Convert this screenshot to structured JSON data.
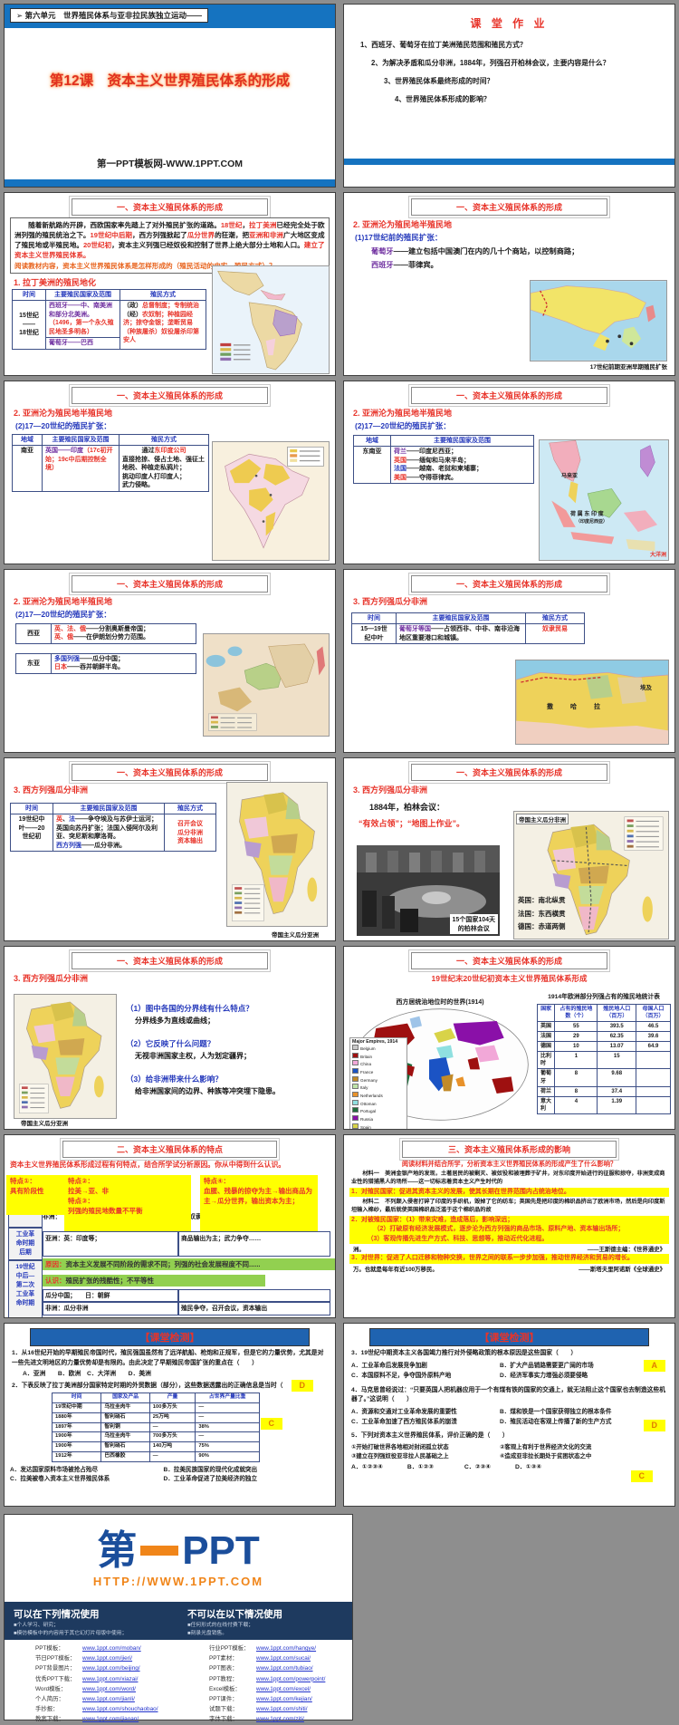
{
  "common": {
    "section1": "一、资本主义殖民体系的形成",
    "section2": "二、资本主义殖民体系的特点",
    "section3": "三、资本主义殖民体系形成的影响",
    "quiz_banner": "【课堂检测】"
  },
  "slide01": {
    "unit_header": "➢ 第六单元　世界殖民体系与亚非拉民族独立运动——",
    "title": "第12课　资本主义世界殖民体系的形成",
    "site": "第一PPT模板网-WWW.1PPT.COM"
  },
  "slide02": {
    "title": "课 堂 作 业",
    "questions": [
      "1、西班牙、葡萄牙在拉丁美洲殖民范围和殖民方式？",
      "2、为解决矛盾和瓜分非洲，1884年，列强召开柏林会议，主要内容是什么？",
      "3、世界殖民体系最终形成的时间？",
      "4、世界殖民体系形成的影响？"
    ]
  },
  "slide03": {
    "intro_seg": [
      {
        "t": "　　随着新航路的开辟，西欧国家率先踏上了对外殖民扩张的道路。",
        "c": "k"
      },
      {
        "t": "18世纪",
        "c": "r"
      },
      {
        "t": "，",
        "c": "k"
      },
      {
        "t": "拉丁美洲",
        "c": "r"
      },
      {
        "t": "已经完全处于欧洲列强的殖民统治之下。",
        "c": "k"
      },
      {
        "t": "19世纪中后期",
        "c": "r"
      },
      {
        "t": "，西方列强掀起了",
        "c": "k"
      },
      {
        "t": "瓜分世界",
        "c": "r"
      },
      {
        "t": "的狂潮，把",
        "c": "k"
      },
      {
        "t": "亚洲和非洲",
        "c": "r"
      },
      {
        "t": "广大地区变成了殖民地或半殖民地。",
        "c": "k"
      },
      {
        "t": "20世纪初",
        "c": "r"
      },
      {
        "t": "，资本主义列强已经奴役和控制了世界上绝大部分土地和人口。",
        "c": "k"
      },
      {
        "t": "建立了资本主义世界殖民体系。",
        "c": "r"
      }
    ],
    "prompt": "阅读教材内容，资本主义世界殖民体系是怎样形成的（殖民活动的史实，殖民方式）？",
    "sub": "1. 拉丁美洲的殖民地化",
    "headers": [
      "时间",
      "主要殖民国家及范围",
      "殖民方式"
    ],
    "time": "15世纪\n——\n18世纪",
    "row1_seg": [
      {
        "t": "西班牙——中、南美洲和部分北美洲。",
        "c": "p"
      },
      {
        "t": "（1496，第一个永久殖民地圣多明各）",
        "c": "r"
      }
    ],
    "row2_seg": [
      {
        "t": "葡萄牙——巴西",
        "c": "p"
      }
    ],
    "method_seg": [
      {
        "t": "（政）",
        "c": "k"
      },
      {
        "t": "总督制度；专制统治\n",
        "c": "r"
      },
      {
        "t": "（经）",
        "c": "k"
      },
      {
        "t": "农奴制；种植园经济；掠夺金银；垄断贸易\n",
        "c": "r"
      },
      {
        "t": "（种族屠杀）",
        "c": "r"
      },
      {
        "t": "奴役屠杀印第安人",
        "c": "r"
      }
    ]
  },
  "slide04": {
    "sub": "2. 亚洲沦为殖民地半殖民地",
    "point": "(1)17世纪前的殖民扩张：",
    "line1_seg": [
      {
        "t": "葡萄牙",
        "c": "p"
      },
      {
        "t": "——建立包括中国澳门在内的几十个商站，以控制商路；",
        "c": "k"
      }
    ],
    "line2_seg": [
      {
        "t": "西班牙",
        "c": "p"
      },
      {
        "t": "——菲律宾。",
        "c": "k"
      }
    ],
    "caption": "17世纪前期亚洲早期殖民扩张"
  },
  "slide05": {
    "sub": "2. 亚洲沦为殖民地半殖民地",
    "point": "(2)17—20世纪的殖民扩张：",
    "headers": [
      "地域",
      "主要殖民国家及范围",
      "殖民方式"
    ],
    "region": "南亚",
    "country_seg": [
      {
        "t": "英国——印度",
        "c": "p"
      },
      {
        "t": "（17c初开始；19c中后期控制全境）",
        "c": "r"
      }
    ],
    "method1_seg": [
      {
        "t": "通过",
        "c": "k"
      },
      {
        "t": "东印度公司",
        "c": "r"
      }
    ],
    "method2": "直接抢掠、侵占土地、强征土地税、种植走私鸦片；\n挑动印度人打印度人；\n武力侵略。"
  },
  "slide06": {
    "sub": "2. 亚洲沦为殖民地半殖民地",
    "point": "(2)17—20世纪的殖民扩张：",
    "headers": [
      "地域",
      "主要殖民国家及范围"
    ],
    "region": "东南亚",
    "lines_seg": [
      {
        "t": "荷兰",
        "c": "p"
      },
      {
        "t": "——印度尼西亚；\n",
        "c": "k"
      },
      {
        "t": "英国",
        "c": "r"
      },
      {
        "t": "——缅甸和马来半岛；\n",
        "c": "k"
      },
      {
        "t": "法国",
        "c": "b"
      },
      {
        "t": "——越南、老挝和柬埔寨；\n",
        "c": "k"
      },
      {
        "t": "美国",
        "c": "r"
      },
      {
        "t": "——夺得菲律宾。",
        "c": "k"
      }
    ],
    "map_labels": {
      "malaya": "马来亚",
      "dutch": "荷 属 东 印 度",
      "dutch2": "（印度尼西亚）",
      "oceania": "大洋洲"
    }
  },
  "slide07": {
    "sub": "2. 亚洲沦为殖民地半殖民地",
    "point": "(2)17—20世纪的殖民扩张：",
    "west_region": "西亚",
    "west_seg": [
      {
        "t": "英、法、俄",
        "c": "r"
      },
      {
        "t": "——分割奥斯曼帝国；\n",
        "c": "k"
      },
      {
        "t": "英、俄",
        "c": "r"
      },
      {
        "t": "——在伊朗划分势力范围。",
        "c": "k"
      }
    ],
    "east_region": "东亚",
    "east_seg": [
      {
        "t": "多国列强",
        "c": "b"
      },
      {
        "t": "——瓜分中国；\n",
        "c": "k"
      },
      {
        "t": "日本",
        "c": "r"
      },
      {
        "t": "——吞并朝鲜半岛。",
        "c": "k"
      }
    ]
  },
  "slide08": {
    "sub": "3. 西方列强瓜分非洲",
    "headers": [
      "时间",
      "主要殖民国家及范围",
      "殖民方式"
    ],
    "time": "15—19世\n纪中叶",
    "range_seg": [
      {
        "t": "葡萄牙等国",
        "c": "p"
      },
      {
        "t": "——占领西非、中非、南非沿海地区重要港口和城镇。",
        "c": "k"
      }
    ],
    "method": "奴隶贸易",
    "map_labels": {
      "sahara": "撒　哈　拉",
      "egypt": "埃及"
    }
  },
  "slide09": {
    "sub": "3. 西方列强瓜分非洲",
    "headers": [
      "时间",
      "主要殖民国家及范围",
      "殖民方式"
    ],
    "time": "19世纪中\n叶——20\n世纪初",
    "range_seg": [
      {
        "t": "英",
        "c": "r"
      },
      {
        "t": "、",
        "c": "k"
      },
      {
        "t": "法",
        "c": "b"
      },
      {
        "t": "——争夺埃及与苏伊士运河；英国向苏丹扩张；法国入侵阿尔及利亚、突尼斯和摩洛哥。\n",
        "c": "k"
      },
      {
        "t": "西方列强",
        "c": "b"
      },
      {
        "t": "——瓜分非洲。",
        "c": "k"
      }
    ],
    "methods": "召开会议\n瓜分非洲\n资本输出",
    "caption": "帝国主义瓜分亚洲"
  },
  "slide10": {
    "sub": "3. 西方列强瓜分非洲",
    "line1": "1884年，柏林会议：",
    "line2": "“有效占领”；“地图上作业”。",
    "photo_caption": "15个国家104天\n的柏林会议",
    "map_box": "帝国主义瓜分非洲",
    "map_notes": "英国：南北纵贯\n法国：东西横贯\n德国：赤道两侧"
  },
  "slide11": {
    "sub": "3. 西方列强瓜分非洲",
    "qa": [
      {
        "q": "（1）图中各国的分界线有什么特点？",
        "a": "分界线多为直线或曲线；"
      },
      {
        "q": "（2）它反映了什么问题？",
        "a": "无视非洲国家主权，人为划定疆界；"
      },
      {
        "q": "（3）给非洲带来什么影响？",
        "a": "给非洲国家间的边界、种族等冲突埋下隐患。"
      }
    ],
    "caption": "帝国主义瓜分亚洲"
  },
  "slide12": {
    "title": "19世纪末20世纪初资本主义世界殖民体系形成",
    "map_title": "西方居统治地位时的世界(1914)",
    "legend_title": "Major Empires, 1914",
    "legend": [
      {
        "name": "Belgium",
        "color": "#c8c8c8"
      },
      {
        "name": "Britain",
        "color": "#9e1010"
      },
      {
        "name": "China",
        "color": "#f2a8d8"
      },
      {
        "name": "France",
        "color": "#1b53c4"
      },
      {
        "name": "Germany",
        "color": "#c28a28"
      },
      {
        "name": "Italy",
        "color": "#bfe3a8"
      },
      {
        "name": "Netherlands",
        "color": "#e8922a"
      },
      {
        "name": "Ottoman",
        "color": "#8fe0e0"
      },
      {
        "name": "Portugal",
        "color": "#1f6e3c"
      },
      {
        "name": "Russia",
        "color": "#8a10a8"
      },
      {
        "name": "Spain",
        "color": "#d8d348"
      },
      {
        "name": "United States",
        "color": "#f2f2f2"
      }
    ],
    "chart_data": {
      "type": "table",
      "title": "1914年欧洲部分列强占有的殖民地统计表",
      "headers": [
        "国家",
        "占有的殖民地数（个）",
        "殖民地人口（百万）",
        "母国人口（百万）"
      ],
      "rows": [
        [
          "英国",
          "55",
          "393.5",
          "46.5"
        ],
        [
          "法国",
          "29",
          "62.35",
          "39.6"
        ],
        [
          "德国",
          "10",
          "13.07",
          "64.9"
        ],
        [
          "比利时",
          "1",
          "15",
          ""
        ],
        [
          "葡萄牙",
          "8",
          "9.68",
          ""
        ],
        [
          "荷兰",
          "8",
          "37.4",
          ""
        ],
        [
          "意大利",
          "4",
          "1.39",
          ""
        ]
      ]
    }
  },
  "slide13": {
    "prompt": "资本主义世界殖民体系形成过程有何特点，结合所学试分析原因。你从中得到什么认识。",
    "note1": "特点①：\n具有阶段性",
    "note2": "特点②：\n拉美→亚、非\n特点③：\n列强的殖民地数量不平衡",
    "note4": "特点④：\n血腥、残暴的掠夺为主→输出商品为主→瓜分世界，输出资本为主；",
    "rowhead1": "前工业\n革命时\n期",
    "rowhead2": "工业革\n命时期\n后期",
    "rowhead3": "19世纪\n中后—\n第二次\n工业革\n命时期",
    "r1_c1": "非洲：",
    "r1_c2": "奴隶贸易",
    "r2_c1": "亚洲：英：印度等；",
    "r2_c2": "商品输出为主；武力争夺……",
    "cause_lbl": "原因：",
    "cause": "资本主义发展不同阶段的需求不同；列强的社会发展程度不同......",
    "insight_lbl": "认识：",
    "insight": "殖民扩张的残酷性；不平等性",
    "r3_c1a": "瓜分中国；　　日：朝鲜",
    "r3_c1b": "非洲：瓜分非洲",
    "r3_c2b": "殖民争夺，召开会议，资本输出"
  },
  "slide14": {
    "prompt": "阅读材料并结合所学，分析资本主义世界殖民体系的形成产生了什么影响？",
    "m1": "　　材料一　美洲金银产地的发现，土著居民的被剿灭、被奴役和被埋葬于矿井，对东印度开始进行的征服和掠夺，非洲变成商业性的猎捕黑人的场所——这一切标志着资本主义产生时代的",
    "y1": "1．对殖民国家：促进其资本主义的发展，使其长期在世界范围内占统治地位。",
    "m2": "　　材料二　不列颠入侵者打碎了印度的手织机，毁掉了它的纺车；英国先是把印度的棉织品挤出了欧洲市场，然后是向印度斯坦输入棉纱，最后就使英国棉织品泛滥于这个棉织品的故",
    "y2": "2．对被殖民国家：（1）带来灾难，造成落后，影响深远；\n　　　　（2）打破原有经济发展模式，逐步沦为西方列强的商品市场、原料产地、资本输出场所；\n　　　（3）客观传播先进生产方式、科技、思想等，推动近代化进程。",
    "frag1": "洲。",
    "src1": "——王斯德主编：《世界通史》",
    "y3": "3．对世界：促进了人口迁移和物种交换，世界之间的联系一步步加强，推动世界经济和贸易的增长。",
    "frag2": "万。也就是每年有近100万移民。",
    "src2": "——斯塔夫里阿诺斯《全球通史》"
  },
  "slide15": {
    "q1": "1．从16世纪开始的早期殖民帝国时代，殖民强国虽然有了远洋航船、枪炮和正规军，但是它的力量优势，尤其是对一些先进文明地区的力量优势却是有限的。由此决定了早期殖民帝国扩张的重点在（　　）",
    "q1_opts": "A．亚洲　　B．欧洲　C．大洋洲　　D．美洲",
    "q1_ans": "D",
    "q2": "2．下表反映了拉丁美洲部分国家特定时期的外贸数据（部分），这些数据透露出的正确信息是当时（　　）",
    "q2_ans": "C",
    "chart_data": {
      "type": "table",
      "headers": [
        "时间",
        "国家及产品",
        "产量",
        "占世界产量比重"
      ],
      "rows": [
        [
          "19世纪中期",
          "乌拉圭肉牛",
          "100多万头",
          "—"
        ],
        [
          "1880年",
          "智利硝石",
          "25万吨",
          "—"
        ],
        [
          "1897年",
          "智利铜",
          "—",
          "38%"
        ],
        [
          "1900年",
          "乌拉圭肉牛",
          "700多万头",
          "—"
        ],
        [
          "1900年",
          "智利硝石",
          "140万吨",
          "75%"
        ],
        [
          "1912年",
          "巴西橡胶",
          "—",
          "90%"
        ]
      ]
    },
    "q2_opts": [
      "A．发达国家原料市场被抢占殆尽",
      "B．拉美民族国家的现代化成就突出",
      "C．拉美被卷入资本主义世界殖民体系",
      "D．工业革命促进了拉美经济的独立"
    ]
  },
  "slide16": {
    "q3": "3．19世纪中期资本主义各国竭力推行对外侵略政策的根本原因是这些国家（　　）",
    "q3_ans": "A",
    "q3_opts": [
      "A．工业革命后发展竞争加剧",
      "B．扩大产品销路需要更广阔的市场",
      "C．本国原料不足，争夺国外原料产地",
      "D．经济军事实力增强必须要侵略"
    ],
    "q4": "4．马克思曾经说过：“只要英国人把机器应用于一个有煤有铁的国家的交通上，就无法阻止这个国家也去制造这些机器了。”这说明（　　）",
    "q4_ans": "D",
    "q4_opts": [
      "A．资源和交通对工业革命发展的重要性",
      "B．煤和铁是一个国家获得独立的根本条件",
      "C．工业革命加速了西方殖民体系的崩溃",
      "D．殖民活动在客观上传播了新的生产方式"
    ],
    "q5": "5．下列对资本主义世界殖民体系，评价正确的是（　　）",
    "q5_ans": "C",
    "q5_items": [
      "①开始打破世界各地相对封闭孤立状态",
      "②客观上有利于世界经济文化的交流",
      "③建立在列强奴役亚非拉人民基础之上",
      "④造成亚非拉长期处于贫困状态之中"
    ],
    "q5_opts": "A．①②③④　　　　B．①②③　　　　　C．②③④　　　　D．①③④"
  },
  "footer": {
    "logo_left": "第",
    "logo_right": "PPT",
    "logo_url": "HTTP://WWW.1PPT.COM",
    "can_title": "可以在下列情况使用",
    "can_items": [
      "■个人学习、研究；",
      "■模仿模板中的内容用于其它幻灯片母版中使用；"
    ],
    "cannot_title": "不可以在以下情况使用",
    "cannot_items": [
      "■任何形式的在线付费下载；",
      "■刻录光盘销售。"
    ],
    "links_left": [
      {
        "label": "PPT模板：",
        "url": "www.1ppt.com/moban/"
      },
      {
        "label": "节日PPT模板：",
        "url": "www.1ppt.com/jieri/"
      },
      {
        "label": "PPT背景图片：",
        "url": "www.1ppt.com/beijing/"
      },
      {
        "label": "优秀PPT下载：",
        "url": "www.1ppt.com/xiazai/"
      },
      {
        "label": "Word模板：",
        "url": "www.1ppt.com/word/"
      },
      {
        "label": "个人简历：",
        "url": "www.1ppt.com/jianli/"
      },
      {
        "label": "手抄报：",
        "url": "www.1ppt.com/shouchaobao/"
      },
      {
        "label": "教案下载：",
        "url": "www.1ppt.com/jiaoan/"
      }
    ],
    "links_right": [
      {
        "label": "行业PPT模板：",
        "url": "www.1ppt.com/hangye/"
      },
      {
        "label": "PPT素材：",
        "url": "www.1ppt.com/sucai/"
      },
      {
        "label": "PPT图表：",
        "url": "www.1ppt.com/tubiao/"
      },
      {
        "label": "PPT教程：",
        "url": "www.1ppt.com/powerpoint/"
      },
      {
        "label": "Excel模板：",
        "url": "www.1ppt.com/excel/"
      },
      {
        "label": "PPT课件：",
        "url": "www.1ppt.com/kejian/"
      },
      {
        "label": "试题下载：",
        "url": "www.1ppt.com/shiti/"
      },
      {
        "label": "字体下载：",
        "url": "www.1ppt.com/ziti/"
      }
    ]
  }
}
